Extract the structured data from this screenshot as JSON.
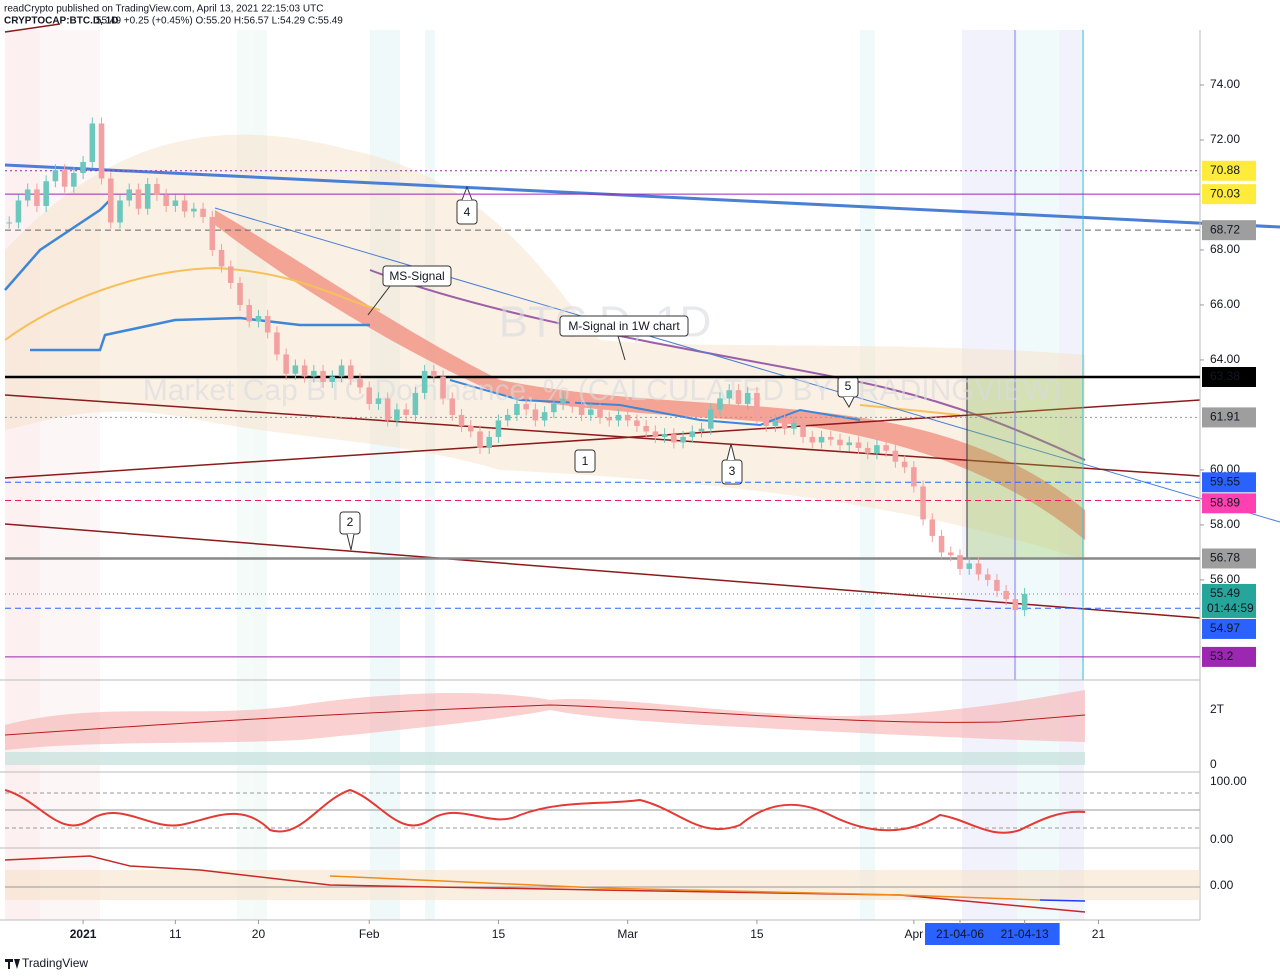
{
  "header": {
    "published": "readCrypto published on TradingView.com, April 13, 2021 22:15:03 UTC",
    "symbol": "CRYPTOCAP:BTC.D, 1D",
    "quote": "55.49 +0.25 (+0.45%) O:55.20 H:56.57 L:54.29 C:55.49"
  },
  "watermark": {
    "symbol": "BTC.D, 1D",
    "description": "Market Cap BTC Dominance, % (CALCULATED BY TRADINGVIEW)"
  },
  "annotations": [
    "MS-Signal",
    "M-Signal in 1W chart",
    "1",
    "2",
    "3",
    "4",
    "5"
  ],
  "panes": {
    "volume_top": "2T",
    "volume_zero": "0",
    "osc_top": "100.00",
    "osc_zero": "0.00",
    "trend_zero": "0.00"
  },
  "footer": "TradingView",
  "chart_data": {
    "type": "candlestick",
    "up_color": "#6cc7bc",
    "down_color": "#f2a0a0",
    "x": [
      -8,
      -7,
      -6,
      -5,
      -4,
      -3,
      -2,
      -1,
      0,
      1,
      2,
      3,
      4,
      5,
      6,
      7,
      8,
      9,
      10,
      11,
      12,
      13,
      14,
      15,
      16,
      17,
      18,
      19,
      20,
      21,
      22,
      23,
      24,
      25,
      26,
      27,
      28,
      29,
      30,
      31,
      32,
      33,
      34,
      35,
      36,
      37,
      38,
      39,
      40,
      41,
      42,
      43,
      44,
      45,
      46,
      47,
      48,
      49,
      50,
      51,
      52,
      53,
      54,
      55,
      56,
      57,
      58,
      59,
      60,
      61,
      62,
      63,
      64,
      65,
      66,
      67,
      68,
      69,
      70,
      71,
      72,
      73,
      74,
      75,
      76,
      77,
      78,
      79,
      80,
      81,
      82,
      83,
      84,
      85,
      86,
      87,
      88,
      89,
      90,
      91,
      92,
      93,
      94,
      95,
      96,
      97,
      98,
      99,
      100,
      101,
      102
    ],
    "values": [
      69.0,
      69.8,
      70.2,
      69.6,
      70.5,
      70.9,
      70.3,
      70.8,
      71.2,
      72.6,
      70.6,
      69.0,
      69.8,
      70.2,
      69.5,
      70.4,
      70.0,
      69.6,
      69.8,
      69.4,
      69.5,
      69.2,
      68.0,
      67.4,
      66.8,
      66.0,
      65.4,
      65.6,
      65.0,
      64.2,
      63.5,
      63.8,
      63.4,
      63.6,
      63.2,
      63.4,
      63.8,
      63.3,
      63.0,
      62.4,
      62.6,
      61.8,
      62.2,
      62.0,
      62.8,
      63.6,
      63.4,
      62.6,
      62.0,
      61.6,
      61.4,
      60.8,
      61.2,
      61.8,
      62.0,
      62.4,
      62.2,
      61.8,
      62.1,
      62.4,
      62.6,
      62.3,
      62.0,
      62.2,
      61.9,
      61.8,
      62.0,
      61.8,
      61.6,
      61.4,
      61.2,
      61.3,
      61.0,
      61.2,
      61.4,
      61.5,
      62.2,
      62.6,
      62.9,
      62.4,
      62.8,
      61.9,
      61.6,
      61.8,
      61.5,
      61.7,
      61.2,
      61.0,
      61.2,
      61.1,
      60.9,
      61.0,
      60.8,
      60.6,
      60.9,
      60.7,
      60.3,
      60.1,
      59.4,
      58.2,
      57.6,
      57.0,
      56.9,
      56.4,
      56.6,
      56.2,
      56.0,
      55.6,
      55.3,
      54.9,
      55.49
    ],
    "xlim": [
      -9,
      121
    ],
    "xticks": [
      {
        "value": 0,
        "label": "2021"
      },
      {
        "value": 10,
        "label": "11"
      },
      {
        "value": 19,
        "label": "20"
      },
      {
        "value": 31,
        "label": "Feb"
      },
      {
        "value": 45,
        "label": "15"
      },
      {
        "value": 59,
        "label": "Mar"
      },
      {
        "value": 73,
        "label": "15"
      },
      {
        "value": 90,
        "label": "Apr"
      },
      {
        "value": 95,
        "label": "21-04-06"
      },
      {
        "value": 102,
        "label": "21-04-13"
      },
      {
        "value": 110,
        "label": "21"
      }
    ],
    "highlighted_xticks": [
      8,
      9
    ],
    "ylim": [
      52.36,
      76
    ],
    "yticks": [
      {
        "value": 56,
        "label": "56.00"
      },
      {
        "value": 58,
        "label": "58.00"
      },
      {
        "value": 60,
        "label": "60.00"
      },
      {
        "value": 64,
        "label": "64.00"
      },
      {
        "value": 66,
        "label": "66.00"
      },
      {
        "value": 68,
        "label": "68.00"
      },
      {
        "value": 72,
        "label": "72.00"
      },
      {
        "value": 74,
        "label": "74.00"
      }
    ],
    "levels": [
      {
        "value": 70.88,
        "color": "#9c27b0",
        "style": "dotted",
        "label_bg": "#ffeb3b",
        "label_color": "#131722"
      },
      {
        "value": 70.03,
        "color": "#9c27b0",
        "style": "solid",
        "label_bg": "#ffeb3b",
        "label_color": "#131722"
      },
      {
        "value": 68.72,
        "color": "#666666",
        "style": "dashed",
        "label_bg": "#9e9e9e",
        "label_color": "#131722"
      },
      {
        "value": 63.38,
        "color": "#000000",
        "style": "thick",
        "label_bg": "#000000",
        "label_color": "#ffffff"
      },
      {
        "value": 61.91,
        "color": "#999999",
        "style": "dotted",
        "label_bg": "#9e9e9e",
        "label_color": "#131722"
      },
      {
        "value": 59.55,
        "color": "#2962ff",
        "style": "dashed",
        "label_bg": "#2962ff",
        "label_color": "#ffffff"
      },
      {
        "value": 58.89,
        "color": "#e91e63",
        "style": "dashed",
        "label_bg": "#ff40b0",
        "label_color": "#ffffff"
      },
      {
        "value": 56.78,
        "color": "#888888",
        "style": "thick",
        "label_bg": "#9e9e9e",
        "label_color": "#131722"
      },
      {
        "value": 54.97,
        "color": "#2962ff",
        "style": "dashed",
        "label_bg": "#2962ff",
        "label_color": "#ffffff"
      },
      {
        "value": 53.2,
        "color": "#9c27b0",
        "style": "solid",
        "label_bg": "#9c27b0",
        "label_color": "#ffffff"
      }
    ],
    "last_price": {
      "value": 55.49,
      "countdown": "01:44:59",
      "color": "#26a69a"
    }
  }
}
